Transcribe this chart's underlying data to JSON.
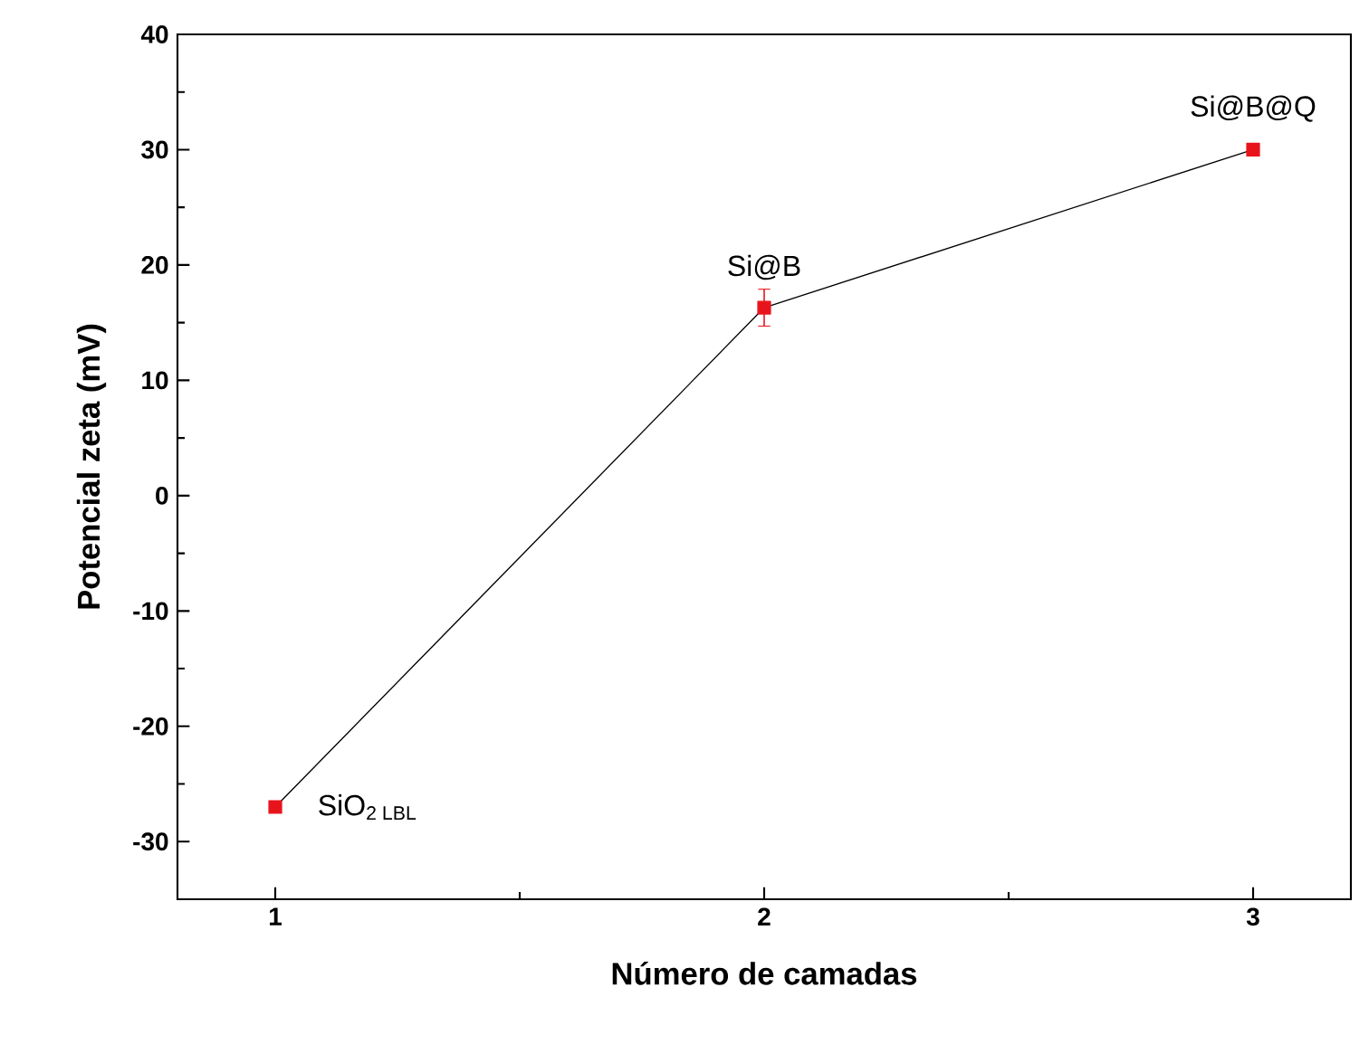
{
  "chart_data": {
    "type": "line",
    "xlabel": "Número de camadas",
    "ylabel": "Potencial zeta (mV)",
    "x": [
      1,
      2,
      3
    ],
    "series": [
      {
        "color": "#e8141c",
        "values": [
          -27,
          16.3,
          30
        ],
        "errors": [
          null,
          1.6,
          null
        ]
      }
    ],
    "xlim": [
      0.8,
      3.2
    ],
    "xticks": [
      1,
      2,
      3
    ],
    "ylim": [
      -35,
      40
    ],
    "yticks": [
      -30,
      -20,
      -10,
      0,
      10,
      20,
      30,
      40
    ],
    "marker": "square",
    "line_style": "solid",
    "grid": false,
    "annotations": [
      {
        "text": "SiO$_{2 LBL}$",
        "x": 1,
        "y": -27
      },
      {
        "text": "Si@B",
        "x": 2,
        "y": 16.3
      },
      {
        "text": "Si@B@Q",
        "x": 3,
        "y": 30
      }
    ]
  }
}
